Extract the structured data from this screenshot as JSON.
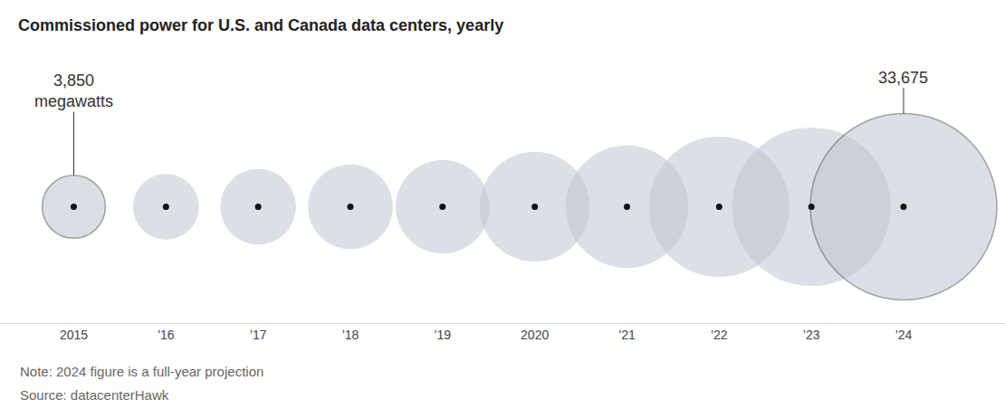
{
  "chart_data": {
    "type": "bubble",
    "title": "Commissioned power for U.S. and Canada data centers, yearly",
    "note": "Note: 2024 figure is a full-year projection",
    "source": "Source: datacenterHawk",
    "x": [
      2015,
      2016,
      2017,
      2018,
      2019,
      2020,
      2021,
      2022,
      2023,
      2024
    ],
    "values": [
      3850,
      4200,
      5550,
      6950,
      8500,
      11700,
      14550,
      19100,
      24350,
      33675
    ],
    "value_labels": [
      "3,850\nmegawatts",
      null,
      null,
      null,
      null,
      null,
      null,
      null,
      null,
      "33,675"
    ],
    "color": "#bfc4d0",
    "xlim": [
      2014.2,
      2025.1
    ],
    "xticks": [
      2015,
      {
        "value": 2016,
        "label": "’16"
      },
      {
        "value": 2017,
        "label": "’17"
      },
      {
        "value": 2018,
        "label": "’18"
      },
      {
        "value": 2019,
        "label": "’19"
      },
      2020,
      {
        "value": 2021,
        "label": "’21"
      },
      {
        "value": 2022,
        "label": "’22"
      },
      {
        "value": 2023,
        "label": "’23"
      },
      {
        "value": 2024,
        "label": "’24"
      }
    ],
    "tick_labels": "x",
    "grid": false
  }
}
